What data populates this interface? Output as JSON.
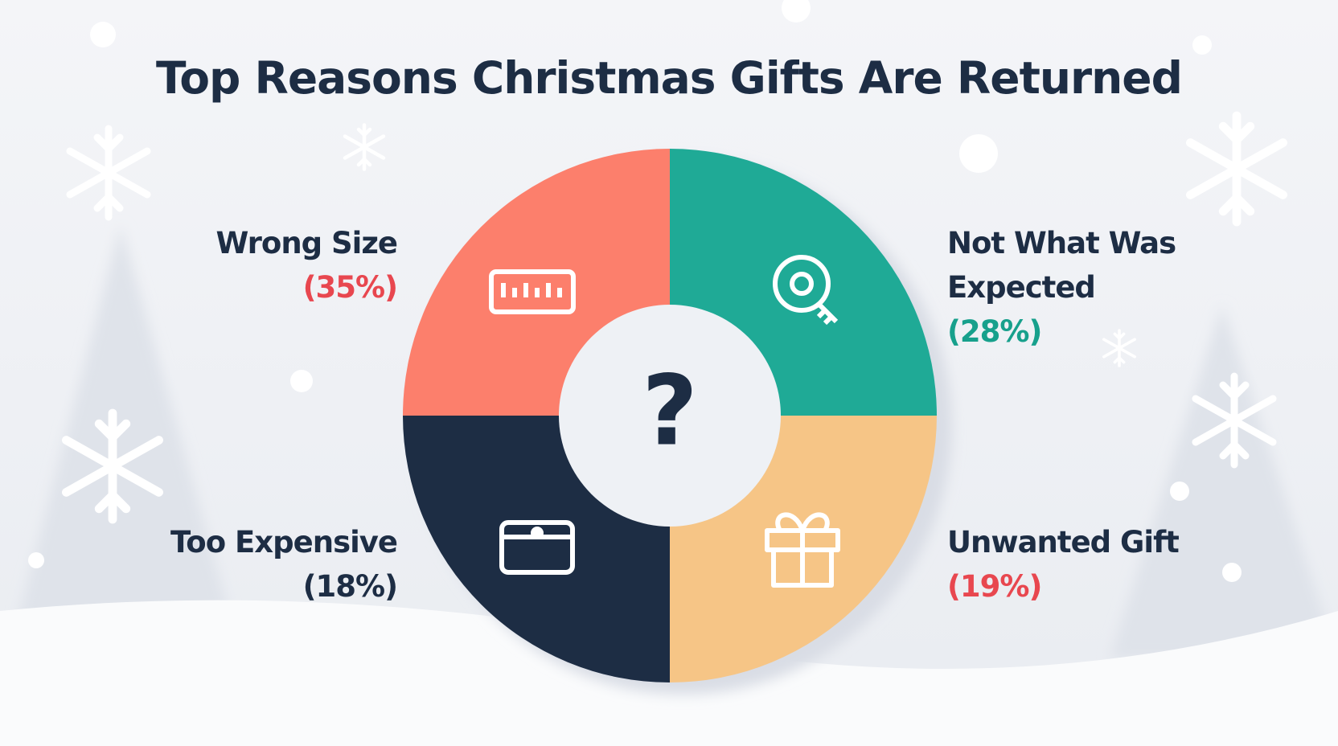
{
  "chart_data": {
    "type": "donut",
    "title": "Top Reasons Christmas Gifts Are Returned",
    "center_label": "?",
    "categories": [
      "Wrong Size",
      "Not What Was Expected",
      "Unwanted Gift",
      "Too Expensive"
    ],
    "values": [
      35,
      28,
      19,
      18
    ],
    "value_labels": [
      "(35%)",
      "(28%)",
      "(19%)",
      "(18%)"
    ],
    "colors": [
      "#fc7f6c",
      "#1faa96",
      "#f6c586",
      "#1d2d44"
    ],
    "label_colors": [
      "#e8474f",
      "#17a08c",
      "#e8474f",
      "#1d2d44"
    ]
  }
}
